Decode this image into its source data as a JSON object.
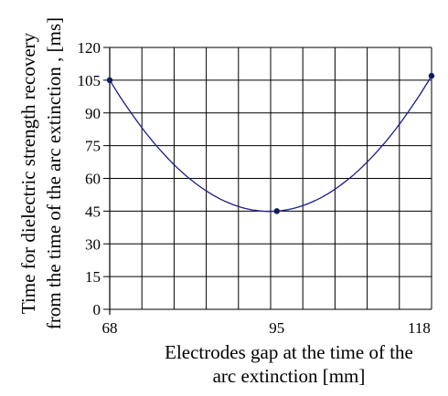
{
  "chart_data": {
    "type": "line",
    "title": "",
    "xlabel_lines": [
      "Electrodes gap at the time of the",
      "arc extinction [mm]"
    ],
    "ylabel_lines": [
      "Time  for  dielectric  strength  recovery",
      "from the time of the arc extinction , [ms]"
    ],
    "x_ticks": [
      68,
      95,
      118
    ],
    "y_ticks": [
      0,
      15,
      30,
      45,
      60,
      75,
      90,
      105,
      120
    ],
    "xlim": [
      68,
      120
    ],
    "ylim": [
      0,
      120
    ],
    "grid": true,
    "series": [
      {
        "name": "",
        "x": [
          68,
          95,
          120
        ],
        "y": [
          105,
          45,
          107
        ]
      }
    ],
    "colors": {
      "line": "#1c1c8c",
      "marker": "#0f1a5a",
      "grid": "#000000"
    }
  }
}
